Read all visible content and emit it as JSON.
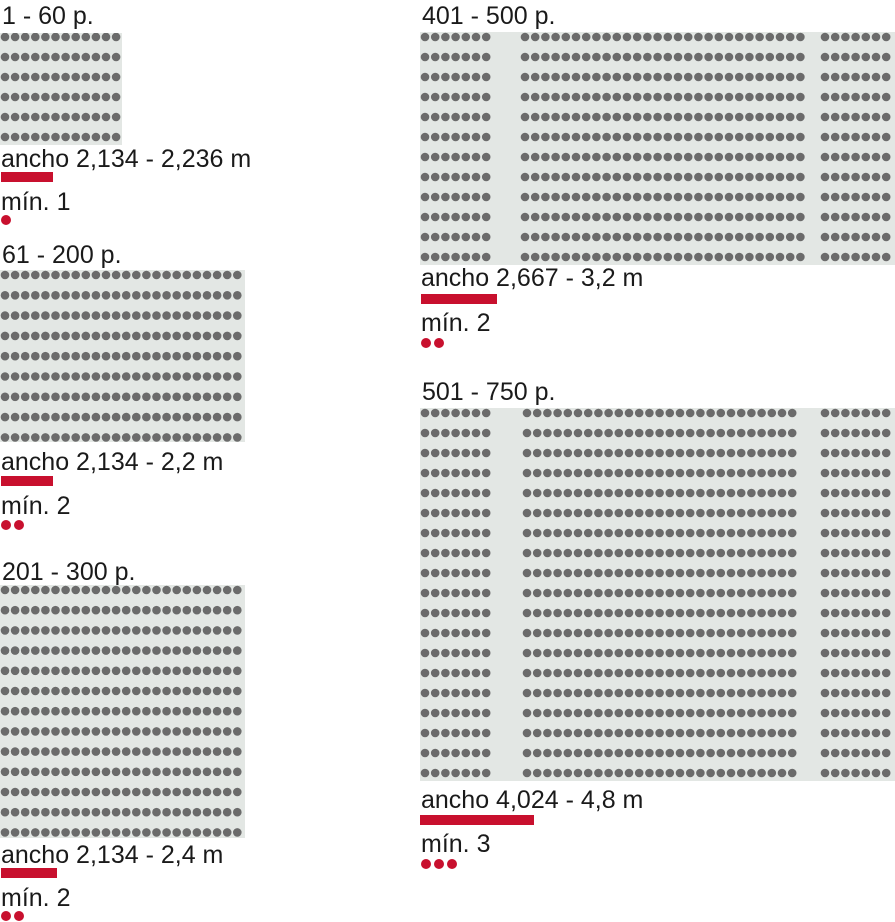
{
  "accent_color": "#c8102e",
  "seat_color": "#6b6b6b",
  "floor_color": "#e3e7e4",
  "sections": [
    {
      "id": "s1",
      "title": "1 - 60 p.",
      "width_label": "ancho 2,134 - 2,236 m",
      "exits_label": "mín. 1",
      "exits": 1
    },
    {
      "id": "s2",
      "title": "61 - 200 p.",
      "width_label": "ancho 2,134 - 2,2 m",
      "exits_label": "mín. 2",
      "exits": 2
    },
    {
      "id": "s3",
      "title": "201 - 300 p.",
      "width_label": "ancho 2,134 - 2,4 m",
      "exits_label": "mín. 2",
      "exits": 2
    },
    {
      "id": "s4",
      "title": "401 - 500 p.",
      "width_label": "ancho 2,667 - 3,2 m",
      "exits_label": "mín. 2",
      "exits": 2
    },
    {
      "id": "s5",
      "title": "501 - 750 p.",
      "width_label": "ancho 4,024 - 4,8 m",
      "exits_label": "mín. 3",
      "exits": 3
    }
  ]
}
